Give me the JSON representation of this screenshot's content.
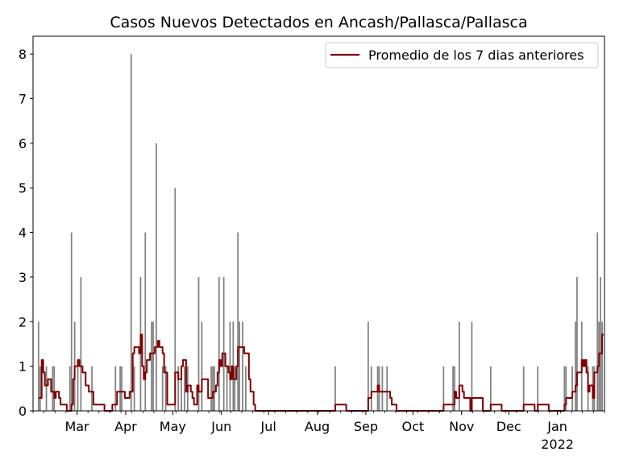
{
  "chart_data": {
    "type": "bar+line",
    "title": "Casos Nuevos Detectados en Ancash/Pallasca/Pallasca",
    "xlabel": "",
    "ylabel": "",
    "ylim": [
      0,
      8.4
    ],
    "y_ticks": [
      0,
      1,
      2,
      3,
      4,
      5,
      6,
      7,
      8
    ],
    "x_range": [
      "2021-02-01",
      "2022-01-31"
    ],
    "x_ticks": [
      {
        "date": "2021-03-01",
        "label": "Mar"
      },
      {
        "date": "2021-04-01",
        "label": "Apr"
      },
      {
        "date": "2021-05-01",
        "label": "May"
      },
      {
        "date": "2021-06-01",
        "label": "Jun"
      },
      {
        "date": "2021-07-01",
        "label": "Jul"
      },
      {
        "date": "2021-08-01",
        "label": "Aug"
      },
      {
        "date": "2021-09-01",
        "label": "Sep"
      },
      {
        "date": "2021-10-01",
        "label": "Oct"
      },
      {
        "date": "2021-11-01",
        "label": "Nov"
      },
      {
        "date": "2021-12-01",
        "label": "Dec"
      },
      {
        "date": "2022-01-01",
        "label": "Jan",
        "sublabel": "2022"
      }
    ],
    "bar_color": "#808080",
    "line_color": "#800000",
    "legend": {
      "position": "top-right",
      "entries": [
        "Promedio de los 7 dias anteriores"
      ]
    },
    "grid": false,
    "series": [
      {
        "kind": "bar",
        "points": [
          [
            "2021-02-04",
            2
          ],
          [
            "2021-02-05",
            1
          ],
          [
            "2021-02-09",
            1
          ],
          [
            "2021-02-13",
            1
          ],
          [
            "2021-02-14",
            1
          ],
          [
            "2021-02-24",
            1
          ],
          [
            "2021-02-25",
            4
          ],
          [
            "2021-02-27",
            2
          ],
          [
            "2021-03-01",
            1
          ],
          [
            "2021-03-03",
            3
          ],
          [
            "2021-03-10",
            1
          ],
          [
            "2021-03-25",
            1
          ],
          [
            "2021-03-28",
            1
          ],
          [
            "2021-03-29",
            1
          ],
          [
            "2021-04-04",
            8
          ],
          [
            "2021-04-06",
            1
          ],
          [
            "2021-04-10",
            3
          ],
          [
            "2021-04-13",
            4
          ],
          [
            "2021-04-17",
            2
          ],
          [
            "2021-04-18",
            2
          ],
          [
            "2021-04-20",
            6
          ],
          [
            "2021-04-24",
            1
          ],
          [
            "2021-04-26",
            1
          ],
          [
            "2021-05-02",
            5
          ],
          [
            "2021-05-04",
            1
          ],
          [
            "2021-05-06",
            1
          ],
          [
            "2021-05-08",
            1
          ],
          [
            "2021-05-10",
            1
          ],
          [
            "2021-05-17",
            3
          ],
          [
            "2021-05-19",
            2
          ],
          [
            "2021-05-25",
            1
          ],
          [
            "2021-05-26",
            1
          ],
          [
            "2021-05-27",
            1
          ],
          [
            "2021-05-30",
            3
          ],
          [
            "2021-06-02",
            3
          ],
          [
            "2021-06-04",
            1
          ],
          [
            "2021-06-06",
            2
          ],
          [
            "2021-06-08",
            2
          ],
          [
            "2021-06-09",
            1
          ],
          [
            "2021-06-11",
            4
          ],
          [
            "2021-06-12",
            2
          ],
          [
            "2021-06-14",
            2
          ],
          [
            "2021-06-16",
            1
          ],
          [
            "2021-08-12",
            1
          ],
          [
            "2021-09-02",
            2
          ],
          [
            "2021-09-04",
            1
          ],
          [
            "2021-09-08",
            1
          ],
          [
            "2021-09-09",
            1
          ],
          [
            "2021-09-11",
            1
          ],
          [
            "2021-09-14",
            1
          ],
          [
            "2021-10-20",
            1
          ],
          [
            "2021-10-26",
            1
          ],
          [
            "2021-10-27",
            1
          ],
          [
            "2021-10-30",
            2
          ],
          [
            "2021-11-07",
            2
          ],
          [
            "2021-11-19",
            1
          ],
          [
            "2021-12-10",
            1
          ],
          [
            "2021-12-19",
            1
          ],
          [
            "2022-01-05",
            1
          ],
          [
            "2022-01-06",
            1
          ],
          [
            "2022-01-10",
            1
          ],
          [
            "2022-01-12",
            2
          ],
          [
            "2022-01-13",
            3
          ],
          [
            "2022-01-16",
            2
          ],
          [
            "2022-01-20",
            1
          ],
          [
            "2022-01-23",
            1
          ],
          [
            "2022-01-24",
            1
          ],
          [
            "2022-01-26",
            4
          ],
          [
            "2022-01-27",
            2
          ],
          [
            "2022-01-28",
            3
          ],
          [
            "2022-01-29",
            2
          ]
        ]
      },
      {
        "kind": "line",
        "name": "Promedio de los 7 dias anteriores",
        "points": [
          [
            "2021-02-04",
            0.29
          ],
          [
            "2021-02-06",
            1.14
          ],
          [
            "2021-02-07",
            0.86
          ],
          [
            "2021-02-08",
            0.57
          ],
          [
            "2021-02-10",
            0.71
          ],
          [
            "2021-02-12",
            0.43
          ],
          [
            "2021-02-14",
            0.29
          ],
          [
            "2021-02-15",
            0.43
          ],
          [
            "2021-02-17",
            0.29
          ],
          [
            "2021-02-18",
            0.14
          ],
          [
            "2021-02-21",
            0.14
          ],
          [
            "2021-02-22",
            0
          ],
          [
            "2021-02-24",
            0
          ],
          [
            "2021-02-25",
            0.14
          ],
          [
            "2021-02-26",
            0.71
          ],
          [
            "2021-02-27",
            1.0
          ],
          [
            "2021-03-01",
            1.14
          ],
          [
            "2021-03-02",
            1.0
          ],
          [
            "2021-03-04",
            0.86
          ],
          [
            "2021-03-06",
            0.57
          ],
          [
            "2021-03-08",
            0.43
          ],
          [
            "2021-03-10",
            0.43
          ],
          [
            "2021-03-11",
            0.14
          ],
          [
            "2021-03-17",
            0.14
          ],
          [
            "2021-03-18",
            0
          ],
          [
            "2021-03-22",
            0
          ],
          [
            "2021-03-23",
            0.14
          ],
          [
            "2021-03-25",
            0.14
          ],
          [
            "2021-03-26",
            0.43
          ],
          [
            "2021-03-29",
            0.43
          ],
          [
            "2021-03-31",
            0.29
          ],
          [
            "2021-04-03",
            0.43
          ],
          [
            "2021-04-05",
            1.29
          ],
          [
            "2021-04-06",
            1.43
          ],
          [
            "2021-04-08",
            1.43
          ],
          [
            "2021-04-09",
            1.29
          ],
          [
            "2021-04-10",
            1.71
          ],
          [
            "2021-04-11",
            1.0
          ],
          [
            "2021-04-12",
            0.71
          ],
          [
            "2021-04-13",
            0.86
          ],
          [
            "2021-04-14",
            1.14
          ],
          [
            "2021-04-16",
            1.29
          ],
          [
            "2021-04-18",
            1.29
          ],
          [
            "2021-04-19",
            1.43
          ],
          [
            "2021-04-21",
            1.57
          ],
          [
            "2021-04-22",
            1.43
          ],
          [
            "2021-04-24",
            1.29
          ],
          [
            "2021-04-25",
            0.86
          ],
          [
            "2021-04-26",
            0.86
          ],
          [
            "2021-04-27",
            0.14
          ],
          [
            "2021-04-30",
            0.14
          ],
          [
            "2021-05-02",
            0.86
          ],
          [
            "2021-05-04",
            0.71
          ],
          [
            "2021-05-06",
            1.0
          ],
          [
            "2021-05-07",
            1.14
          ],
          [
            "2021-05-08",
            1.14
          ],
          [
            "2021-05-09",
            0.43
          ],
          [
            "2021-05-10",
            0.57
          ],
          [
            "2021-05-12",
            0.43
          ],
          [
            "2021-05-13",
            0.29
          ],
          [
            "2021-05-14",
            0.14
          ],
          [
            "2021-05-15",
            0.14
          ],
          [
            "2021-05-16",
            0.57
          ],
          [
            "2021-05-17",
            0.43
          ],
          [
            "2021-05-19",
            0.71
          ],
          [
            "2021-05-22",
            0.71
          ],
          [
            "2021-05-23",
            0.29
          ],
          [
            "2021-05-26",
            0.43
          ],
          [
            "2021-05-28",
            0.57
          ],
          [
            "2021-05-29",
            0.86
          ],
          [
            "2021-05-30",
            1.14
          ],
          [
            "2021-05-31",
            1.0
          ],
          [
            "2021-06-01",
            1.29
          ],
          [
            "2021-06-03",
            1.0
          ],
          [
            "2021-06-05",
            0.86
          ],
          [
            "2021-06-06",
            0.71
          ],
          [
            "2021-06-07",
            1.0
          ],
          [
            "2021-06-08",
            0.71
          ],
          [
            "2021-06-10",
            1.0
          ],
          [
            "2021-06-11",
            1.43
          ],
          [
            "2021-06-14",
            1.43
          ],
          [
            "2021-06-15",
            1.29
          ],
          [
            "2021-06-17",
            1.29
          ],
          [
            "2021-06-18",
            0.71
          ],
          [
            "2021-06-19",
            0.43
          ],
          [
            "2021-06-21",
            0.14
          ],
          [
            "2021-06-22",
            0
          ],
          [
            "2021-08-11",
            0
          ],
          [
            "2021-08-12",
            0.14
          ],
          [
            "2021-08-18",
            0.14
          ],
          [
            "2021-08-19",
            0
          ],
          [
            "2021-09-01",
            0
          ],
          [
            "2021-09-02",
            0.29
          ],
          [
            "2021-09-04",
            0.43
          ],
          [
            "2021-09-07",
            0.43
          ],
          [
            "2021-09-08",
            0.57
          ],
          [
            "2021-09-09",
            0.43
          ],
          [
            "2021-09-15",
            0.43
          ],
          [
            "2021-09-16",
            0.29
          ],
          [
            "2021-09-17",
            0.14
          ],
          [
            "2021-09-19",
            0.14
          ],
          [
            "2021-09-20",
            0
          ],
          [
            "2021-10-19",
            0
          ],
          [
            "2021-10-20",
            0.14
          ],
          [
            "2021-10-25",
            0.14
          ],
          [
            "2021-10-27",
            0.43
          ],
          [
            "2021-10-28",
            0.29
          ],
          [
            "2021-10-29",
            0.29
          ],
          [
            "2021-10-30",
            0.57
          ],
          [
            "2021-11-01",
            0.43
          ],
          [
            "2021-11-02",
            0.29
          ],
          [
            "2021-11-05",
            0.29
          ],
          [
            "2021-11-06",
            0
          ],
          [
            "2021-11-07",
            0.29
          ],
          [
            "2021-11-13",
            0.29
          ],
          [
            "2021-11-14",
            0
          ],
          [
            "2021-11-18",
            0
          ],
          [
            "2021-11-19",
            0.14
          ],
          [
            "2021-11-25",
            0.14
          ],
          [
            "2021-11-26",
            0
          ],
          [
            "2021-12-09",
            0
          ],
          [
            "2021-12-10",
            0.14
          ],
          [
            "2021-12-16",
            0.14
          ],
          [
            "2021-12-17",
            0
          ],
          [
            "2021-12-19",
            0.14
          ],
          [
            "2021-12-25",
            0.14
          ],
          [
            "2021-12-26",
            0
          ],
          [
            "2022-01-03",
            0
          ],
          [
            "2022-01-05",
            0.14
          ],
          [
            "2022-01-06",
            0.29
          ],
          [
            "2022-01-09",
            0.29
          ],
          [
            "2022-01-10",
            0.43
          ],
          [
            "2022-01-12",
            0.57
          ],
          [
            "2022-01-13",
            0.86
          ],
          [
            "2022-01-15",
            0.86
          ],
          [
            "2022-01-16",
            1.14
          ],
          [
            "2022-01-17",
            1.0
          ],
          [
            "2022-01-18",
            1.14
          ],
          [
            "2022-01-19",
            0.86
          ],
          [
            "2022-01-20",
            0.43
          ],
          [
            "2022-01-21",
            0.57
          ],
          [
            "2022-01-22",
            0.57
          ],
          [
            "2022-01-23",
            0.29
          ],
          [
            "2022-01-24",
            0.86
          ],
          [
            "2022-01-25",
            0.86
          ],
          [
            "2022-01-26",
            1.0
          ],
          [
            "2022-01-27",
            1.29
          ],
          [
            "2022-01-29",
            1.71
          ],
          [
            "2022-01-30",
            1.71
          ]
        ]
      }
    ]
  }
}
